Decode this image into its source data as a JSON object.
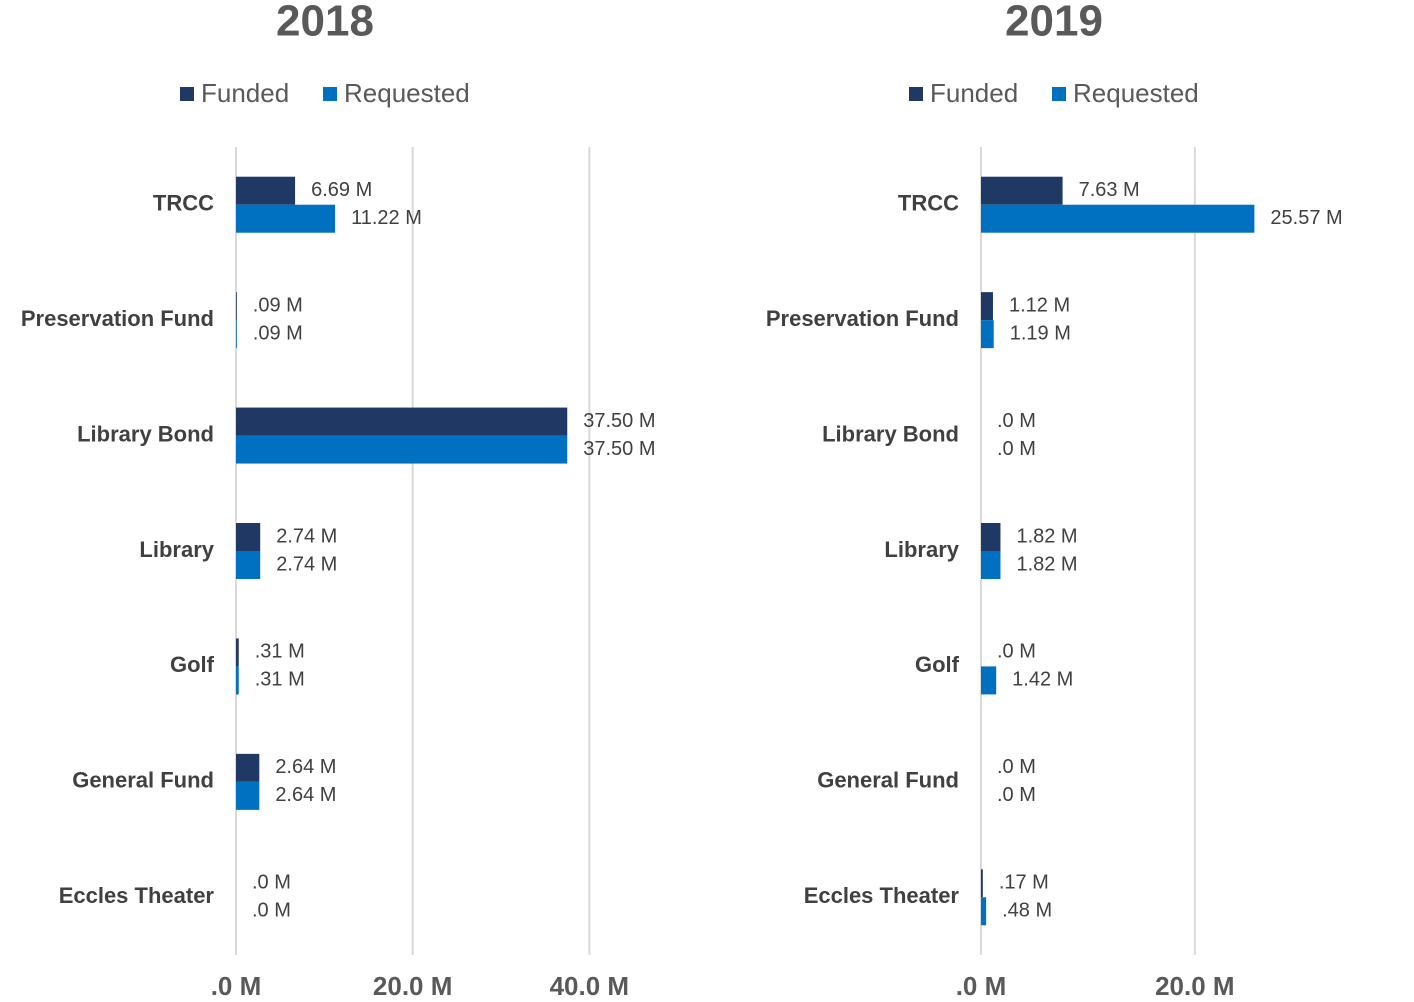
{
  "chart_data": [
    {
      "type": "bar",
      "orientation": "horizontal",
      "title": "2018",
      "categories": [
        "TRCC",
        "Preservation Fund",
        "Library Bond",
        "Library",
        "Golf",
        "General Fund",
        "Eccles Theater"
      ],
      "series": [
        {
          "name": "Funded",
          "color": "#203864",
          "values": [
            6.69,
            0.09,
            37.5,
            2.74,
            0.31,
            2.64,
            0
          ],
          "value_labels": [
            "6.69 M",
            ".09 M",
            "37.50 M",
            "2.74 M",
            ".31 M",
            "2.64 M",
            ".0 M"
          ]
        },
        {
          "name": "Requested",
          "color": "#0070c0",
          "values": [
            11.22,
            0.09,
            37.5,
            2.74,
            0.31,
            2.64,
            0
          ],
          "value_labels": [
            "11.22 M",
            ".09 M",
            "37.50 M",
            "2.74 M",
            ".31 M",
            "2.64 M",
            ".0 M"
          ]
        }
      ],
      "xlim": [
        0,
        48
      ],
      "xticks": [
        {
          "value": 0,
          "label": ".0 M"
        },
        {
          "value": 20,
          "label": "20.0 M"
        },
        {
          "value": 40,
          "label": "40.0 M"
        }
      ],
      "grid": true,
      "legend": "top"
    },
    {
      "type": "bar",
      "orientation": "horizontal",
      "title": "2019",
      "categories": [
        "TRCC",
        "Preservation Fund",
        "Library Bond",
        "Library",
        "Golf",
        "General Fund",
        "Eccles Theater"
      ],
      "series": [
        {
          "name": "Funded",
          "color": "#203864",
          "values": [
            7.63,
            1.12,
            0,
            1.82,
            0,
            0,
            0.17
          ],
          "value_labels": [
            "7.63 M",
            "1.12 M",
            ".0 M",
            "1.82 M",
            ".0 M",
            ".0 M",
            ".17 M"
          ]
        },
        {
          "name": "Requested",
          "color": "#0070c0",
          "values": [
            25.57,
            1.19,
            0,
            1.82,
            1.42,
            0,
            0.48
          ],
          "value_labels": [
            "25.57 M",
            "1.19 M",
            ".0 M",
            "1.82 M",
            "1.42 M",
            ".0 M",
            ".48 M"
          ]
        }
      ],
      "xlim": [
        0,
        39
      ],
      "xticks": [
        {
          "value": 0,
          "label": ".0 M"
        },
        {
          "value": 20,
          "label": "20.0 M"
        }
      ],
      "grid": true,
      "legend": "top"
    }
  ]
}
